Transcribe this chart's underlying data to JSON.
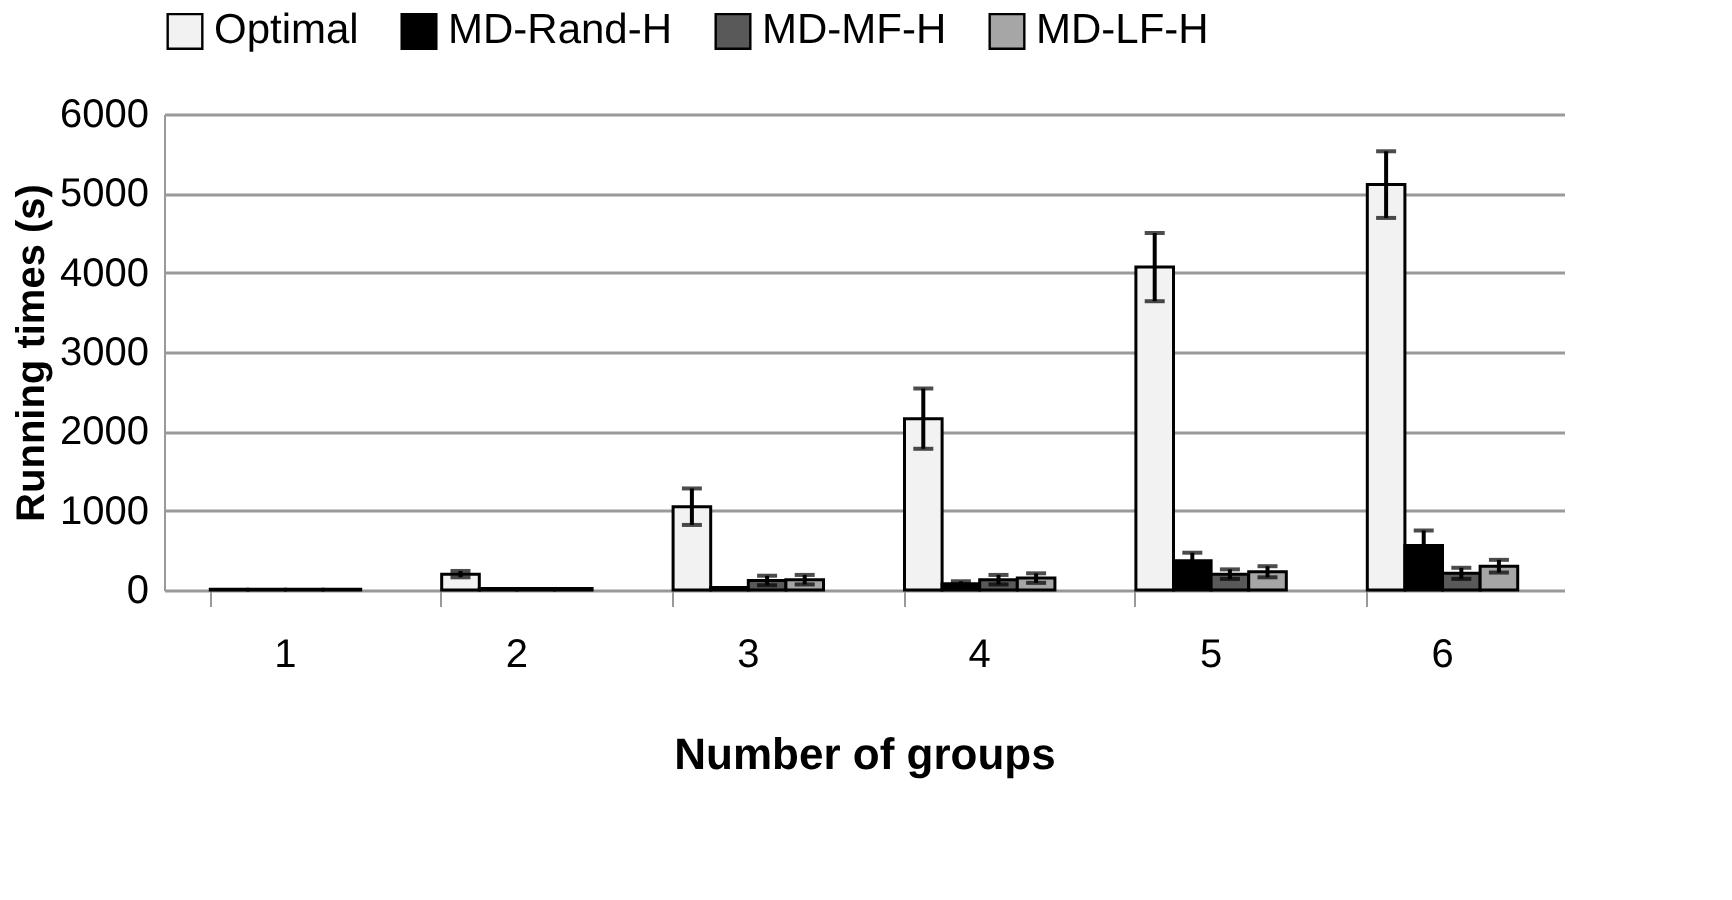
{
  "chart_data": {
    "type": "bar",
    "xlabel": "Number of groups",
    "ylabel": "Running times (s)",
    "categories": [
      "1",
      "2",
      "3",
      "4",
      "5",
      "6"
    ],
    "series": [
      {
        "name": "Optimal",
        "color": "#f2f2f2",
        "values": [
          10,
          200,
          1050,
          2160,
          4070,
          5110
        ],
        "errors": [
          null,
          40,
          230,
          380,
          430,
          420
        ]
      },
      {
        "name": "MD-Rand-H",
        "color": "#000000",
        "values": [
          10,
          20,
          30,
          80,
          370,
          560
        ],
        "errors": [
          null,
          null,
          null,
          30,
          100,
          190
        ]
      },
      {
        "name": "MD-MF-H",
        "color": "#595959",
        "values": [
          10,
          20,
          120,
          130,
          200,
          210
        ],
        "errors": [
          null,
          null,
          60,
          60,
          60,
          70
        ]
      },
      {
        "name": "MD-LF-H",
        "color": "#a6a6a6",
        "values": [
          10,
          20,
          130,
          150,
          230,
          300
        ],
        "errors": [
          null,
          null,
          60,
          60,
          70,
          80
        ]
      }
    ],
    "ylim": [
      0,
      6000
    ],
    "yticks": [
      0,
      1000,
      2000,
      3000,
      4000,
      5000,
      6000
    ],
    "grid": "y",
    "legend": "top"
  }
}
